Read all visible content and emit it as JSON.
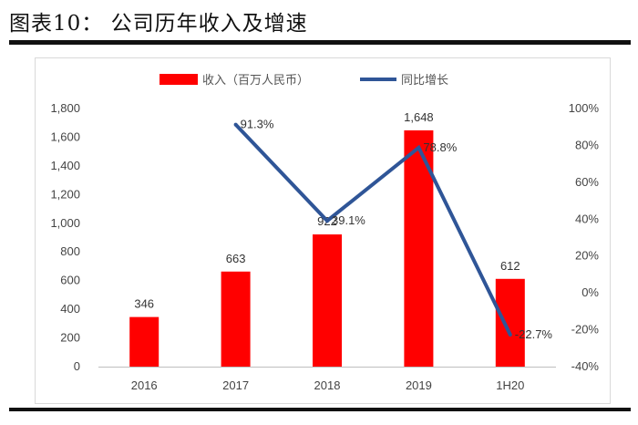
{
  "title": "图表10：  公司历年收入及增速",
  "chart_data": {
    "type": "bar",
    "categories": [
      "2016",
      "2017",
      "2018",
      "2019",
      "1H20"
    ],
    "series": [
      {
        "name": "收入（百万人民币）",
        "type": "bar",
        "axis": "left",
        "color": "#ff0000",
        "values": [
          346,
          663,
          922,
          1648,
          612
        ],
        "labels": [
          "346",
          "663",
          "922",
          "1,648",
          "612"
        ]
      },
      {
        "name": "同比增长",
        "type": "line",
        "axis": "right",
        "color": "#2f5597",
        "values": [
          null,
          91.3,
          39.1,
          78.8,
          -22.7
        ],
        "labels": [
          "",
          "91.3%",
          "39.1%",
          "78.8%",
          "-22.7%"
        ]
      }
    ],
    "y_left": {
      "range": [
        0,
        1800
      ],
      "ticks": [
        0,
        200,
        400,
        600,
        800,
        1000,
        1200,
        1400,
        1600,
        1800
      ],
      "tick_labels": [
        "0",
        "200",
        "400",
        "600",
        "800",
        "1,000",
        "1,200",
        "1,400",
        "1,600",
        "1,800"
      ]
    },
    "y_right": {
      "range": [
        -40,
        100
      ],
      "ticks": [
        -40,
        -20,
        0,
        20,
        40,
        60,
        80,
        100
      ],
      "tick_labels": [
        "-40%",
        "-20%",
        "0%",
        "20%",
        "40%",
        "60%",
        "80%",
        "100%"
      ]
    },
    "grid": false,
    "legend_position": "top"
  }
}
